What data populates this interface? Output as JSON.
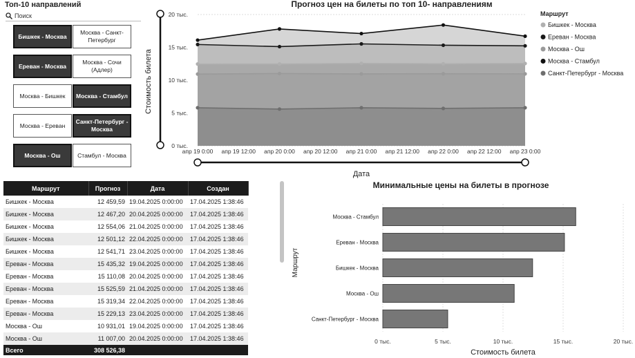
{
  "slicer": {
    "title": "Топ-10 направлений",
    "search_placeholder": "Поиск",
    "tiles": [
      {
        "label": "Бишкек - Москва",
        "selected": true
      },
      {
        "label": "Москва - Санкт-Петербург",
        "selected": false
      },
      {
        "label": "Ереван - Москва",
        "selected": true
      },
      {
        "label": "Москва - Сочи (Адлер)",
        "selected": false
      },
      {
        "label": "Москва - Бишкек",
        "selected": false
      },
      {
        "label": "Москва - Стамбул",
        "selected": true
      },
      {
        "label": "Москва - Ереван",
        "selected": false
      },
      {
        "label": "Санкт-Петербург - Москва",
        "selected": true
      },
      {
        "label": "Москва - Ош",
        "selected": true
      },
      {
        "label": "Стамбул - Москва",
        "selected": false
      }
    ]
  },
  "table": {
    "headers": [
      "Маршрут",
      "Прогноз",
      "Дата",
      "Создан"
    ],
    "rows": [
      [
        "Бишкек - Москва",
        "12 459,59",
        "19.04.2025 0:00:00",
        "17.04.2025 1:38:46"
      ],
      [
        "Бишкек - Москва",
        "12 467,20",
        "20.04.2025 0:00:00",
        "17.04.2025 1:38:46"
      ],
      [
        "Бишкек - Москва",
        "12 554,06",
        "21.04.2025 0:00:00",
        "17.04.2025 1:38:46"
      ],
      [
        "Бишкек - Москва",
        "12 501,12",
        "22.04.2025 0:00:00",
        "17.04.2025 1:38:46"
      ],
      [
        "Бишкек - Москва",
        "12 541,71",
        "23.04.2025 0:00:00",
        "17.04.2025 1:38:46"
      ],
      [
        "Ереван - Москва",
        "15 435,32",
        "19.04.2025 0:00:00",
        "17.04.2025 1:38:46"
      ],
      [
        "Ереван - Москва",
        "15 110,08",
        "20.04.2025 0:00:00",
        "17.04.2025 1:38:46"
      ],
      [
        "Ереван - Москва",
        "15 525,59",
        "21.04.2025 0:00:00",
        "17.04.2025 1:38:46"
      ],
      [
        "Ереван - Москва",
        "15 319,34",
        "22.04.2025 0:00:00",
        "17.04.2025 1:38:46"
      ],
      [
        "Ереван - Москва",
        "15 229,13",
        "23.04.2025 0:00:00",
        "17.04.2025 1:38:46"
      ],
      [
        "Москва - Ош",
        "10 931,01",
        "19.04.2025 0:00:00",
        "17.04.2025 1:38:46"
      ],
      [
        "Москва - Ош",
        "11 007,00",
        "20.04.2025 0:00:00",
        "17.04.2025 1:38:46"
      ]
    ],
    "total_label": "Всего",
    "total_value": "308 526,38"
  },
  "chart_data": [
    {
      "type": "area",
      "title": "Прогноз цен на билеты по топ 10- направлениям",
      "xlabel": "Дата",
      "ylabel": "Стоимость билета",
      "x": [
        0,
        1,
        2,
        3,
        4,
        5,
        6,
        7,
        8
      ],
      "x_ticks": [
        "апр 19 0:00",
        "апр 19 12:00",
        "апр 20 0:00",
        "апр 20 12:00",
        "апр 21 0:00",
        "апр 21 12:00",
        "апр 22 0:00",
        "апр 22 12:00",
        "апр 23 0:00"
      ],
      "y_ticks": [
        "0 тыс.",
        "5 тыс.",
        "10 тыс.",
        "15 тыс.",
        "20 тыс."
      ],
      "y_tick_values": [
        0,
        5000,
        10000,
        15000,
        20000
      ],
      "ylim": [
        0,
        20000
      ],
      "legend_title": "Маршрут",
      "legend_position": "right",
      "series": [
        {
          "name": "Бишкек - Москва",
          "color": "#b0b0b0",
          "points": [
            [
              0,
              12460
            ],
            [
              2,
              12467
            ],
            [
              4,
              12554
            ],
            [
              6,
              12501
            ],
            [
              8,
              12542
            ]
          ]
        },
        {
          "name": "Ереван - Москва",
          "color": "#1a1a1a",
          "points": [
            [
              0,
              15435
            ],
            [
              2,
              15110
            ],
            [
              4,
              15526
            ],
            [
              6,
              15319
            ],
            [
              8,
              15229
            ]
          ]
        },
        {
          "name": "Москва - Ош",
          "color": "#9a9a9a",
          "points": [
            [
              0,
              10931
            ],
            [
              2,
              11007
            ],
            [
              4,
              10950
            ],
            [
              6,
              10980
            ],
            [
              8,
              10960
            ]
          ]
        },
        {
          "name": "Москва - Стамбул",
          "color": "#111111",
          "points": [
            [
              0,
              16100
            ],
            [
              2,
              17800
            ],
            [
              4,
              17100
            ],
            [
              6,
              18400
            ],
            [
              8,
              16700
            ]
          ]
        },
        {
          "name": "Санкт-Петербург - Москва",
          "color": "#6e6e6e",
          "points": [
            [
              0,
              5800
            ],
            [
              2,
              5600
            ],
            [
              4,
              5800
            ],
            [
              6,
              5700
            ],
            [
              8,
              5800
            ]
          ]
        }
      ]
    },
    {
      "type": "bar",
      "orientation": "horizontal",
      "title": "Минимальные цены на билеты в прогнозе",
      "xlabel": "Стоимость билета",
      "ylabel": "Маршрут",
      "categories": [
        "Москва - Стамбул",
        "Ереван - Москва",
        "Бишкек - Москва",
        "Москва - Ош",
        "Санкт-Петербург - Москва"
      ],
      "values": [
        16050,
        15110,
        12460,
        10931,
        5400
      ],
      "x_ticks": [
        "0 тыс.",
        "5 тыс.",
        "10 тыс.",
        "15 тыс.",
        "20 тыс."
      ],
      "x_tick_values": [
        0,
        5000,
        10000,
        15000,
        20000
      ],
      "xlim": [
        0,
        20000
      ],
      "bar_color": "#777777"
    }
  ]
}
